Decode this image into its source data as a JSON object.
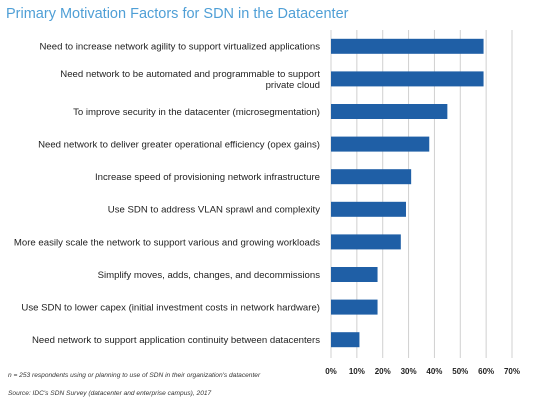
{
  "chart_data": {
    "type": "bar",
    "orientation": "horizontal",
    "title": "Primary Motivation Factors for SDN in the Datacenter",
    "categories": [
      [
        "Need to increase network agility to support virtualized applications"
      ],
      [
        "Need network to be automated and programmable to support",
        "private cloud"
      ],
      [
        "To improve security in the datacenter (microsegmentation)"
      ],
      [
        "Need network to deliver greater operational efficiency (opex gains)"
      ],
      [
        "Increase speed of provisioning network infrastructure"
      ],
      [
        "Use SDN to address VLAN sprawl and complexity"
      ],
      [
        "More easily scale the network to support various and growing workloads"
      ],
      [
        "Simplify moves, adds, changes, and decommissions"
      ],
      [
        "Use SDN to lower capex (initial investment costs in network hardware)"
      ],
      [
        "Need network to support application continuity between datacenters"
      ]
    ],
    "values": [
      59,
      59,
      45,
      38,
      31,
      29,
      27,
      18,
      18,
      11
    ],
    "xlim": [
      0,
      70
    ],
    "x_ticks": [
      "0%",
      "10%",
      "20%",
      "30%",
      "40%",
      "50%",
      "60%",
      "70%"
    ],
    "grid": "vertical",
    "bar_color": "#1f5fa6",
    "grid_color": "#d0d0d0"
  },
  "footnote": "n = 253 respondents using or planning to use of SDN in their organization's datacenter",
  "source": "Source: IDC's SDN Survey (datacenter and enterprise campus), 2017"
}
